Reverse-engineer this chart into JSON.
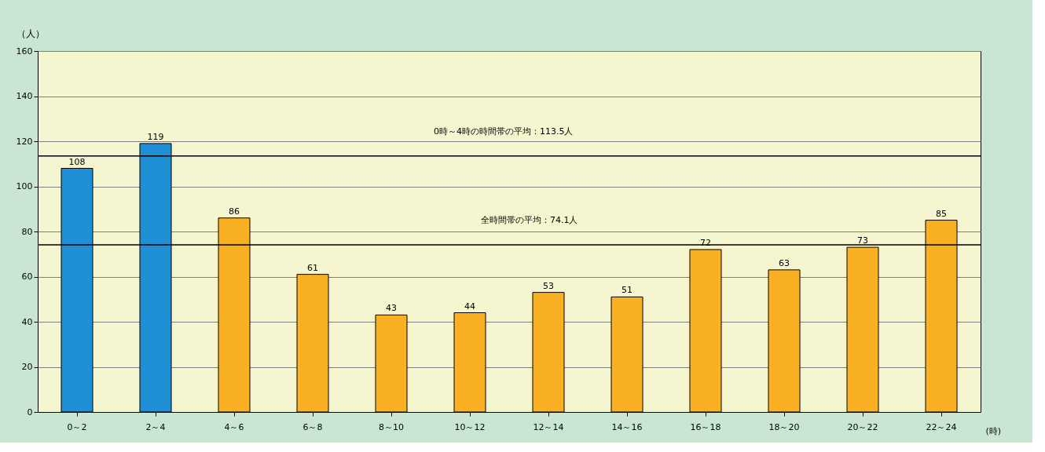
{
  "chart_data": {
    "type": "bar",
    "ylabel": "（人）",
    "xlabel": "(時)",
    "categories": [
      "0～2",
      "2～4",
      "4～6",
      "6～8",
      "8～10",
      "10～12",
      "12～14",
      "14～16",
      "16～18",
      "18～20",
      "20～22",
      "22～24"
    ],
    "values": [
      108,
      119,
      86,
      61,
      43,
      44,
      53,
      51,
      72,
      63,
      73,
      85
    ],
    "colors": [
      "#1f8fd6",
      "#1f8fd6",
      "#f9b022",
      "#f9b022",
      "#f9b022",
      "#f9b022",
      "#f9b022",
      "#f9b022",
      "#f9b022",
      "#f9b022",
      "#f9b022",
      "#f9b022"
    ],
    "ylim": [
      0,
      160
    ],
    "yticks": [
      0,
      20,
      40,
      60,
      80,
      100,
      120,
      140,
      160
    ],
    "grid": "y",
    "data_labels": true,
    "ref_lines": [
      {
        "axis": "y",
        "value": 113.5,
        "label": "0時～4時の時間帯の平均：113.5人",
        "color": "#000000"
      },
      {
        "axis": "y",
        "value": 74.1,
        "label": "全時間帯の平均：74.1人",
        "color": "#000000"
      }
    ]
  }
}
